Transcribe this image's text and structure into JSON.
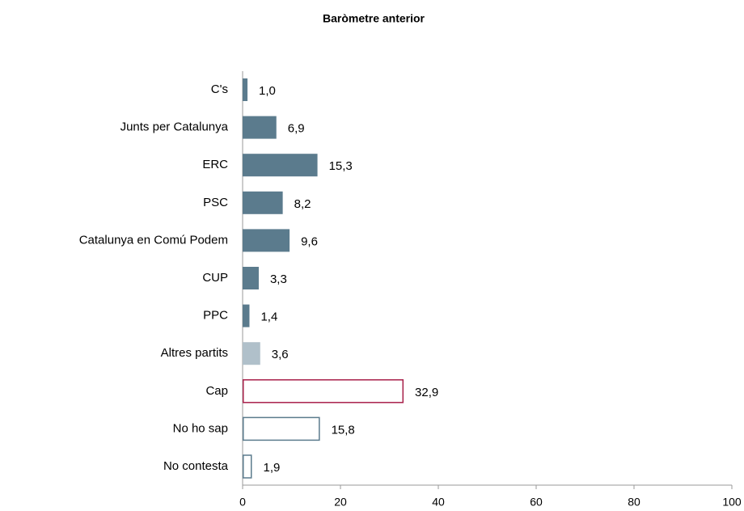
{
  "chart_data": {
    "type": "barh",
    "title": "Baròmetre anterior",
    "categories": [
      "C's",
      "Junts per Catalunya",
      "ERC",
      "PSC",
      "Catalunya en Comú Podem",
      "CUP",
      "PPC",
      "Altres partits",
      "Cap",
      "No ho sap",
      "No contesta"
    ],
    "values": [
      1.0,
      6.9,
      15.3,
      8.2,
      9.6,
      3.3,
      1.4,
      3.6,
      32.9,
      15.8,
      1.9
    ],
    "value_labels": [
      "1,0",
      "6,9",
      "15,3",
      "8,2",
      "9,6",
      "3,3",
      "1,4",
      "3,6",
      "32,9",
      "15,8",
      "1,9"
    ],
    "colors": [
      "#5b7b8d",
      "#5b7b8d",
      "#5b7b8d",
      "#5b7b8d",
      "#5b7b8d",
      "#5b7b8d",
      "#5b7b8d",
      "#b0c0ca",
      "#a8204a",
      "#5b7b8d",
      "#5b7b8d"
    ],
    "hollow": [
      false,
      false,
      false,
      false,
      false,
      false,
      false,
      false,
      true,
      true,
      true
    ],
    "label_colors": [
      "#000000",
      "#000000",
      "#000000",
      "#000000",
      "#000000",
      "#000000",
      "#000000",
      "#000000",
      "#a8204a",
      "#000000",
      "#000000"
    ],
    "xlim": [
      0,
      100
    ],
    "xticks": [
      0,
      20,
      40,
      60,
      80,
      100
    ]
  }
}
